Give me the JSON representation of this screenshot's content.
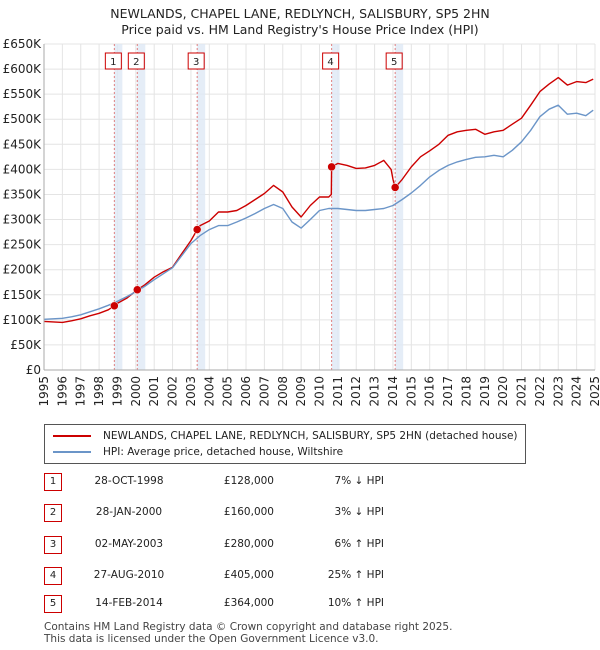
{
  "chart_data": {
    "type": "line",
    "title": "NEWLANDS, CHAPEL LANE, REDLYNCH, SALISBURY, SP5 2HN",
    "subtitle": "Price paid vs. HM Land Registry's House Price Index (HPI)",
    "xlabel": "",
    "ylabel": "",
    "xlim": [
      1995,
      2025
    ],
    "ylim": [
      0,
      650000
    ],
    "yticks": [
      0,
      50000,
      100000,
      150000,
      200000,
      250000,
      300000,
      350000,
      400000,
      450000,
      500000,
      550000,
      600000,
      650000
    ],
    "ytick_labels": [
      "£0",
      "£50K",
      "£100K",
      "£150K",
      "£200K",
      "£250K",
      "£300K",
      "£350K",
      "£400K",
      "£450K",
      "£500K",
      "£550K",
      "£600K",
      "£650K"
    ],
    "xticks": [
      1995,
      1996,
      1997,
      1998,
      1999,
      2000,
      2001,
      2002,
      2003,
      2004,
      2005,
      2006,
      2007,
      2008,
      2009,
      2010,
      2011,
      2012,
      2013,
      2014,
      2015,
      2016,
      2017,
      2018,
      2019,
      2020,
      2021,
      2022,
      2023,
      2024,
      2025
    ],
    "grid": true,
    "series": [
      {
        "name": "NEWLANDS, CHAPEL LANE, REDLYNCH, SALISBURY, SP5 2HN (detached house)",
        "color": "#cc0000",
        "x": [
          1995.0,
          1995.5,
          1996.0,
          1996.5,
          1997.0,
          1997.5,
          1998.0,
          1998.5,
          1998.83,
          1999.0,
          1999.5,
          2000.08,
          2000.5,
          2001.0,
          2001.5,
          2002.0,
          2002.5,
          2003.0,
          2003.34,
          2003.5,
          2004.0,
          2004.5,
          2005.0,
          2005.5,
          2006.0,
          2006.5,
          2007.0,
          2007.5,
          2008.0,
          2008.5,
          2009.0,
          2009.5,
          2010.0,
          2010.5,
          2010.64,
          2010.66,
          2011.0,
          2011.5,
          2012.0,
          2012.5,
          2013.0,
          2013.5,
          2013.9,
          2014.0,
          2014.12,
          2014.5,
          2015.0,
          2015.5,
          2016.0,
          2016.5,
          2017.0,
          2017.5,
          2018.0,
          2018.5,
          2019.0,
          2019.5,
          2020.0,
          2020.5,
          2021.0,
          2021.5,
          2022.0,
          2022.5,
          2023.0,
          2023.5,
          2024.0,
          2024.5,
          2024.9
        ],
        "y": [
          97000,
          96000,
          95000,
          98000,
          102000,
          108000,
          113000,
          120000,
          128000,
          133000,
          143000,
          160000,
          170000,
          185000,
          196000,
          205000,
          232000,
          258000,
          280000,
          288000,
          297000,
          315000,
          315000,
          318000,
          328000,
          340000,
          352000,
          368000,
          355000,
          325000,
          305000,
          328000,
          345000,
          345000,
          350000,
          405000,
          412000,
          408000,
          402000,
          403000,
          408000,
          418000,
          400000,
          380000,
          364000,
          380000,
          405000,
          425000,
          437000,
          450000,
          468000,
          475000,
          478000,
          480000,
          470000,
          475000,
          478000,
          490000,
          502000,
          528000,
          555000,
          570000,
          583000,
          568000,
          575000,
          573000,
          580000
        ]
      },
      {
        "name": "HPI: Average price, detached house, Wiltshire",
        "color": "#6b95c8",
        "x": [
          1995.0,
          1995.5,
          1996.0,
          1996.5,
          1997.0,
          1997.5,
          1998.0,
          1998.5,
          1999.0,
          1999.5,
          2000.0,
          2000.5,
          2001.0,
          2001.5,
          2002.0,
          2002.5,
          2003.0,
          2003.5,
          2004.0,
          2004.5,
          2005.0,
          2005.5,
          2006.0,
          2006.5,
          2007.0,
          2007.5,
          2008.0,
          2008.5,
          2009.0,
          2009.5,
          2010.0,
          2010.5,
          2011.0,
          2011.5,
          2012.0,
          2012.5,
          2013.0,
          2013.5,
          2014.0,
          2014.5,
          2015.0,
          2015.5,
          2016.0,
          2016.5,
          2017.0,
          2017.5,
          2018.0,
          2018.5,
          2019.0,
          2019.5,
          2020.0,
          2020.5,
          2021.0,
          2021.5,
          2022.0,
          2022.5,
          2023.0,
          2023.5,
          2024.0,
          2024.5,
          2024.9
        ],
        "y": [
          101000,
          102000,
          103000,
          106000,
          110000,
          116000,
          122000,
          129000,
          137000,
          146000,
          156000,
          167000,
          180000,
          192000,
          204000,
          228000,
          252000,
          268000,
          280000,
          288000,
          288000,
          295000,
          303000,
          312000,
          322000,
          330000,
          322000,
          295000,
          283000,
          300000,
          318000,
          322000,
          322000,
          320000,
          318000,
          318000,
          320000,
          322000,
          328000,
          340000,
          353000,
          368000,
          385000,
          398000,
          408000,
          415000,
          420000,
          424000,
          425000,
          428000,
          425000,
          438000,
          455000,
          478000,
          505000,
          520000,
          528000,
          510000,
          512000,
          507000,
          518000
        ]
      }
    ],
    "transactions": [
      {
        "num": "1",
        "x": 1998.83,
        "y": 128000,
        "date": "28-OCT-1998",
        "price": "£128,000",
        "hpi": "7% ↓ HPI"
      },
      {
        "num": "2",
        "x": 2000.08,
        "y": 160000,
        "date": "28-JAN-2000",
        "price": "£160,000",
        "hpi": "3% ↓ HPI"
      },
      {
        "num": "3",
        "x": 2003.34,
        "y": 280000,
        "date": "02-MAY-2003",
        "price": "£280,000",
        "hpi": "6% ↑ HPI"
      },
      {
        "num": "4",
        "x": 2010.66,
        "y": 405000,
        "date": "27-AUG-2010",
        "price": "£405,000",
        "hpi": "25% ↑ HPI"
      },
      {
        "num": "5",
        "x": 2014.12,
        "y": 364000,
        "date": "14-FEB-2014",
        "price": "£364,000",
        "hpi": "10% ↑ HPI"
      }
    ],
    "colors": {
      "band": "#dfe8f5",
      "vline": "#e08080",
      "grid": "#e4e4e4",
      "axis": "#aaaaaa"
    }
  },
  "legend": {
    "property": "NEWLANDS, CHAPEL LANE, REDLYNCH, SALISBURY, SP5 2HN (detached house)",
    "hpi": "HPI: Average price, detached house, Wiltshire"
  },
  "footer": {
    "line1": "Contains HM Land Registry data © Crown copyright and database right 2025.",
    "line2": "This data is licensed under the Open Government Licence v3.0."
  }
}
